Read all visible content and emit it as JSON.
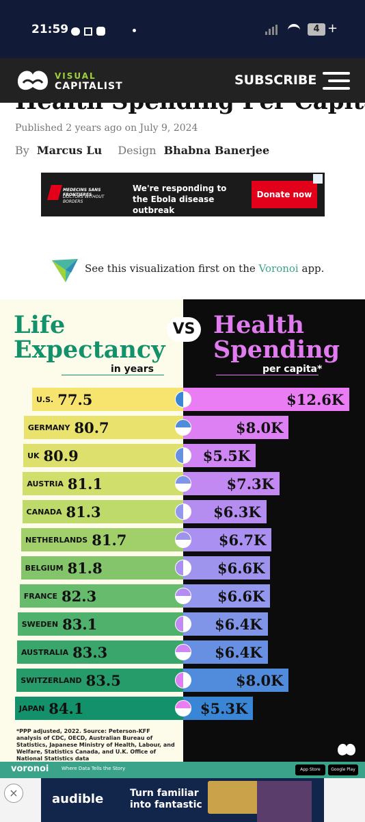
{
  "status_bar": {
    "time": "21:59",
    "battery": "4"
  },
  "header": {
    "logo_top": "VISUAL",
    "logo_bottom": "CAPITALIST",
    "subscribe": "SUBSCRIBE"
  },
  "article": {
    "title": "Health Spending Per Capita",
    "published": "Published 2 years ago on July 9, 2024",
    "by_label": "By",
    "author": "Marcus Lu",
    "design_label": "Design",
    "designer": "Bhabna Banerjee"
  },
  "ad_top": {
    "org": "MEDECINS SANS FRONTIERES",
    "org_sub": "DOCTORS WITHOUT BORDERS",
    "message": "We're responding to the Ebola disease outbreak",
    "button": "Donate now"
  },
  "voronoi_promo": {
    "text_before": "See this visualization first on the",
    "link": "Voronoi",
    "text_after": "app."
  },
  "infographic": {
    "left_title": "Life Expectancy",
    "left_subtitle": "in years",
    "vs": "VS",
    "right_title": "Health Spending",
    "right_subtitle": "per capita*",
    "rows": [
      {
        "country": "U.S.",
        "life_expectancy": 77.5,
        "spending": {
          "value": 12.6,
          "label": "$12.6K"
        }
      },
      {
        "country": "GERMANY",
        "life_expectancy": 80.7,
        "spending": {
          "value": 8.0,
          "label": "$8.0K"
        }
      },
      {
        "country": "UK",
        "life_expectancy": 80.9,
        "spending": {
          "value": 5.5,
          "label": "$5.5K"
        }
      },
      {
        "country": "AUSTRIA",
        "life_expectancy": 81.1,
        "spending": {
          "value": 7.3,
          "label": "$7.3K"
        }
      },
      {
        "country": "CANADA",
        "life_expectancy": 81.3,
        "spending": {
          "value": 6.3,
          "label": "$6.3K"
        }
      },
      {
        "country": "NETHERLANDS",
        "life_expectancy": 81.7,
        "spending": {
          "value": 6.7,
          "label": "$6.7K"
        }
      },
      {
        "country": "BELGIUM",
        "life_expectancy": 81.8,
        "spending": {
          "value": 6.6,
          "label": "$6.6K"
        }
      },
      {
        "country": "FRANCE",
        "life_expectancy": 82.3,
        "spending": {
          "value": 6.6,
          "label": "$6.6K"
        }
      },
      {
        "country": "SWEDEN",
        "life_expectancy": 83.1,
        "spending": {
          "value": 6.4,
          "label": "$6.4K"
        }
      },
      {
        "country": "AUSTRALIA",
        "life_expectancy": 83.3,
        "spending": {
          "value": 6.4,
          "label": "$6.4K"
        }
      },
      {
        "country": "SWITZERLAND",
        "life_expectancy": 83.5,
        "spending": {
          "value": 8.0,
          "label": "$8.0K"
        }
      },
      {
        "country": "JAPAN",
        "life_expectancy": 84.1,
        "spending": {
          "value": 5.3,
          "label": "$5.3K"
        }
      }
    ],
    "source": "*PPP adjusted, 2022. Source: Peterson-KFF analysis of CDC, OECD, Australian Bureau of Statistics, Japanese Ministry of Health, Labour, and Welfare, Statistics Canada, and U.K. Office of National Statistics data"
  },
  "voronoi_bar": {
    "brand": "voronoi",
    "tagline": "Where Data Tells the Story",
    "app_store": "App Store",
    "google_play": "Google Play"
  },
  "ad_bottom": {
    "brand": "audible",
    "message": "Turn familiar into fantastic"
  }
}
